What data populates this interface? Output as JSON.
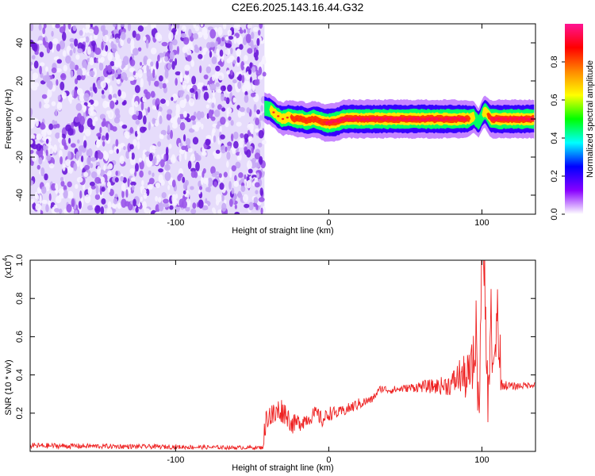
{
  "title": "C2E6.2025.143.16.44.G32",
  "chart_data": [
    {
      "type": "heatmap",
      "xlabel": "Height of straight line (km)",
      "ylabel": "Frequency (Hz)",
      "xlim": [
        -195,
        135
      ],
      "ylim": [
        -50,
        50
      ],
      "x_ticks": [
        -100,
        0,
        100
      ],
      "y_ticks": [
        -40,
        -20,
        0,
        20,
        40
      ],
      "colorbar": {
        "label": "Normalized spectral amplitude",
        "range": [
          0.0,
          1.0
        ],
        "ticks": [
          "0.0",
          "0.2",
          "0.4",
          "0.6",
          "0.8"
        ],
        "colors": [
          "#ffffff",
          "#8800ff",
          "#0000ff",
          "#00ffff",
          "#00ff00",
          "#ffff00",
          "#ff8800",
          "#ff0000",
          "#ff1493"
        ]
      },
      "noise_region_x": [
        -195,
        -42
      ],
      "signal_band": {
        "x": [
          -42,
          -38,
          -34,
          -30,
          -26,
          -22,
          -18,
          -14,
          -10,
          -6,
          -2,
          2,
          6,
          10,
          20,
          40,
          60,
          80,
          90,
          95,
          98,
          100,
          102,
          104,
          106,
          110,
          120,
          135
        ],
        "center_hz": [
          6,
          5,
          2,
          0,
          1,
          0,
          0,
          -1,
          0,
          -1,
          -2,
          -2,
          -1,
          0,
          0,
          0,
          0,
          0,
          0,
          1,
          -2,
          2,
          4,
          2,
          0,
          0,
          0,
          0
        ],
        "peak_amplitude": [
          0.55,
          0.6,
          0.6,
          0.7,
          0.75,
          0.8,
          0.85,
          0.8,
          0.85,
          0.85,
          0.9,
          0.95,
          0.95,
          0.95,
          0.95,
          0.95,
          0.95,
          0.95,
          0.9,
          0.6,
          0.5,
          0.6,
          0.65,
          0.8,
          0.9,
          0.95,
          0.95,
          0.95
        ]
      }
    },
    {
      "type": "line",
      "xlabel": "Height of straight line (km)",
      "ylabel": "SNR (10 * v/v)",
      "scale_note": "(x10",
      "scale_exp": "4",
      "scale_close": ")",
      "xlim": [
        -195,
        135
      ],
      "ylim": [
        0,
        1.0
      ],
      "x_ticks": [
        -100,
        0,
        100
      ],
      "y_ticks": [
        0.2,
        0.4,
        0.6,
        0.8,
        1.0
      ],
      "y_tick_labels": [
        "0.2",
        "0.4",
        "0.6",
        "0.8",
        "1.0"
      ],
      "series": [
        {
          "color": "#ee2222",
          "x": [
            -195,
            -120,
            -60,
            -43,
            -42,
            -40,
            -36,
            -32,
            -28,
            -24,
            -20,
            -14,
            -8,
            -4,
            0,
            6,
            12,
            20,
            28,
            34,
            40,
            50,
            60,
            70,
            80,
            86,
            90,
            94,
            96,
            98,
            100,
            102,
            104,
            106,
            108,
            110,
            112,
            120,
            135
          ],
          "y": [
            0.03,
            0.025,
            0.02,
            0.02,
            0.1,
            0.2,
            0.18,
            0.22,
            0.2,
            0.14,
            0.15,
            0.17,
            0.2,
            0.16,
            0.2,
            0.2,
            0.22,
            0.25,
            0.27,
            0.33,
            0.32,
            0.33,
            0.34,
            0.34,
            0.35,
            0.4,
            0.38,
            0.43,
            0.65,
            0.2,
            1.0,
            0.9,
            0.3,
            0.55,
            0.4,
            0.7,
            0.35,
            0.34,
            0.35
          ],
          "noise_amp": [
            0.015,
            0.012,
            0.01,
            0.01,
            0.06,
            0.08,
            0.08,
            0.07,
            0.06,
            0.05,
            0.05,
            0.04,
            0.04,
            0.04,
            0.04,
            0.03,
            0.03,
            0.03,
            0.02,
            0.02,
            0.02,
            0.02,
            0.03,
            0.04,
            0.06,
            0.1,
            0.12,
            0.15,
            0.2,
            0.2,
            0.15,
            0.2,
            0.2,
            0.15,
            0.1,
            0.1,
            0.03,
            0.02,
            0.015
          ]
        }
      ]
    }
  ]
}
